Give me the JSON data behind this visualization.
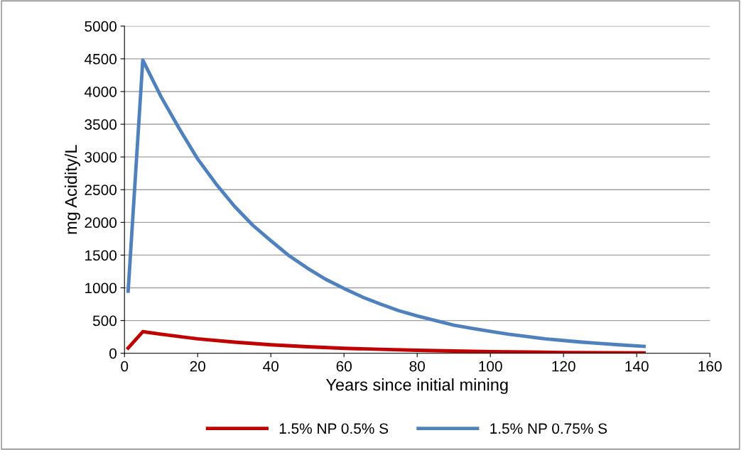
{
  "chart_data": {
    "type": "line",
    "xlabel": "Years since initial mining",
    "ylabel": "mg Acidity/L",
    "xlim": [
      0,
      160
    ],
    "xticks": [
      0,
      20,
      40,
      60,
      80,
      100,
      120,
      140,
      160
    ],
    "ylim": [
      0,
      5000
    ],
    "yticks": [
      0,
      500,
      1000,
      1500,
      2000,
      2500,
      3000,
      3500,
      4000,
      4500,
      5000
    ],
    "grid": "y",
    "legend": "bottom",
    "marker": "none",
    "line_style": "solid",
    "series": [
      {
        "name": "1.5% NP 0.5% S",
        "color": "#c00000",
        "x": [
          1,
          5,
          10,
          15,
          20,
          30,
          40,
          50,
          60,
          70,
          80,
          90,
          100,
          110,
          120,
          130,
          142
        ],
        "values": [
          80,
          330,
          290,
          255,
          220,
          170,
          130,
          100,
          75,
          60,
          45,
          35,
          25,
          18,
          12,
          8,
          5
        ]
      },
      {
        "name": "1.5% NP 0.75% S",
        "color": "#4f81bd",
        "x": [
          1,
          5,
          10,
          15,
          20,
          25,
          30,
          35,
          40,
          45,
          50,
          55,
          60,
          65,
          70,
          75,
          80,
          85,
          90,
          95,
          100,
          105,
          110,
          115,
          120,
          125,
          130,
          135,
          142
        ],
        "values": [
          950,
          4480,
          3920,
          3430,
          2970,
          2590,
          2250,
          1960,
          1720,
          1490,
          1300,
          1130,
          990,
          860,
          750,
          650,
          570,
          500,
          430,
          380,
          335,
          290,
          255,
          220,
          195,
          170,
          150,
          130,
          105
        ]
      }
    ]
  }
}
